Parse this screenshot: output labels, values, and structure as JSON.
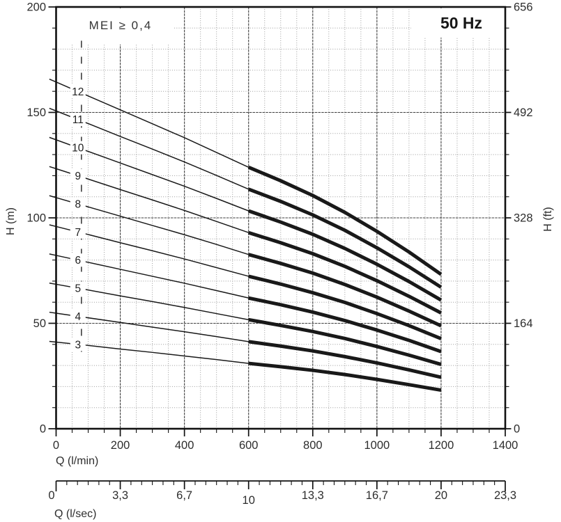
{
  "header": {
    "mei_label": "MEI ≥ 0,4",
    "frequency_label": "50 Hz"
  },
  "axes": {
    "left": {
      "title": "H (m)",
      "tick_values": [
        200,
        150,
        100,
        50,
        0
      ],
      "tick_labels": [
        "200",
        "150",
        "100",
        "50",
        "0"
      ],
      "minor_step": 10,
      "range": [
        0,
        200
      ]
    },
    "right": {
      "title": "H (ft)",
      "tick_labels": [
        "656",
        "492",
        "328",
        "164",
        "0"
      ],
      "tick_positions_m": [
        200,
        150,
        100,
        50,
        0
      ],
      "minor_step": 10
    },
    "bottom": {
      "title": "Q (l/min)",
      "tick_values": [
        0,
        200,
        400,
        600,
        800,
        1000,
        1200,
        1400
      ],
      "tick_labels": [
        "0",
        "200",
        "400",
        "600",
        "800",
        "1000",
        "1200",
        "1400"
      ],
      "minor_step": 50,
      "range": [
        0,
        1400
      ]
    },
    "bottom_secondary": {
      "title": "Q (l/sec)",
      "tick_labels": [
        "0",
        "3,3",
        "6,7",
        "10",
        "13,3",
        "16,7",
        "20",
        "23,3"
      ],
      "tick_positions_lmin": [
        0,
        200,
        400,
        600,
        800,
        1000,
        1200,
        1400
      ],
      "lowered_label": "10",
      "minor_divisions": 6
    }
  },
  "chart_data": {
    "type": "line",
    "title": "Multistage pump head curves, 3 to 12 stages, 50 Hz",
    "xlabel": "Q (l/min)",
    "ylabel": "H (m)",
    "xlim": [
      0,
      1400
    ],
    "ylim": [
      0,
      200
    ],
    "grid": "minor dotted every 50 l/min and 10 m; major every 200 l/min and 50 m",
    "legend": "numbers 3-12 printed on each curve = number of stages",
    "x": [
      0,
      100,
      200,
      300,
      400,
      500,
      600,
      700,
      800,
      900,
      1000,
      1100,
      1200
    ],
    "series": [
      {
        "name": "3",
        "values": [
          41.1,
          39.5,
          37.8,
          36.2,
          34.5,
          32.8,
          31.0,
          29.4,
          27.7,
          25.7,
          23.4,
          20.9,
          18.3
        ]
      },
      {
        "name": "4",
        "values": [
          54.8,
          52.6,
          50.4,
          48.2,
          46.0,
          43.7,
          41.3,
          39.2,
          36.9,
          34.2,
          31.2,
          27.9,
          24.4
        ]
      },
      {
        "name": "5",
        "values": [
          68.5,
          65.8,
          63.0,
          60.3,
          57.5,
          54.6,
          51.7,
          49.0,
          46.1,
          42.8,
          39.0,
          34.9,
          30.5
        ]
      },
      {
        "name": "6",
        "values": [
          82.2,
          78.9,
          75.6,
          72.3,
          69.0,
          65.5,
          62.0,
          58.8,
          55.3,
          51.3,
          46.8,
          41.9,
          36.6
        ]
      },
      {
        "name": "7",
        "values": [
          95.9,
          92.1,
          88.2,
          84.4,
          80.5,
          76.4,
          72.3,
          68.6,
          64.5,
          59.9,
          54.6,
          48.9,
          42.7
        ]
      },
      {
        "name": "8",
        "values": [
          109.6,
          105.2,
          100.8,
          96.4,
          92.0,
          87.4,
          82.6,
          78.4,
          73.8,
          68.4,
          62.4,
          55.8,
          48.8
        ]
      },
      {
        "name": "9",
        "values": [
          123.3,
          118.4,
          113.4,
          108.5,
          103.5,
          98.3,
          93.0,
          88.2,
          83.0,
          77.0,
          70.2,
          62.8,
          54.9
        ]
      },
      {
        "name": "10",
        "values": [
          137.0,
          131.5,
          126.0,
          120.5,
          115.0,
          109.2,
          103.3,
          98.0,
          92.2,
          85.5,
          78.0,
          69.8,
          61.0
        ]
      },
      {
        "name": "11",
        "values": [
          150.7,
          144.7,
          138.6,
          132.6,
          126.5,
          120.1,
          113.6,
          107.8,
          101.4,
          94.1,
          85.8,
          76.8,
          67.1
        ]
      },
      {
        "name": "12",
        "values": [
          164.4,
          157.8,
          151.2,
          144.6,
          138.0,
          131.0,
          124.0,
          117.6,
          110.6,
          102.6,
          93.6,
          83.8,
          73.2
        ]
      }
    ],
    "bold_segment_q_range": [
      600,
      1200
    ],
    "curve_label_q": 68,
    "min_flow_dashed_line": {
      "q": 79,
      "h_range": [
        34,
        184
      ]
    }
  },
  "colors": {
    "curve": "#191919",
    "frame": "#111111",
    "grid_major": "#3f3f3f",
    "grid_minor": "#9b9b9b",
    "text": "#2d2d2d",
    "background": "#ffffff"
  }
}
